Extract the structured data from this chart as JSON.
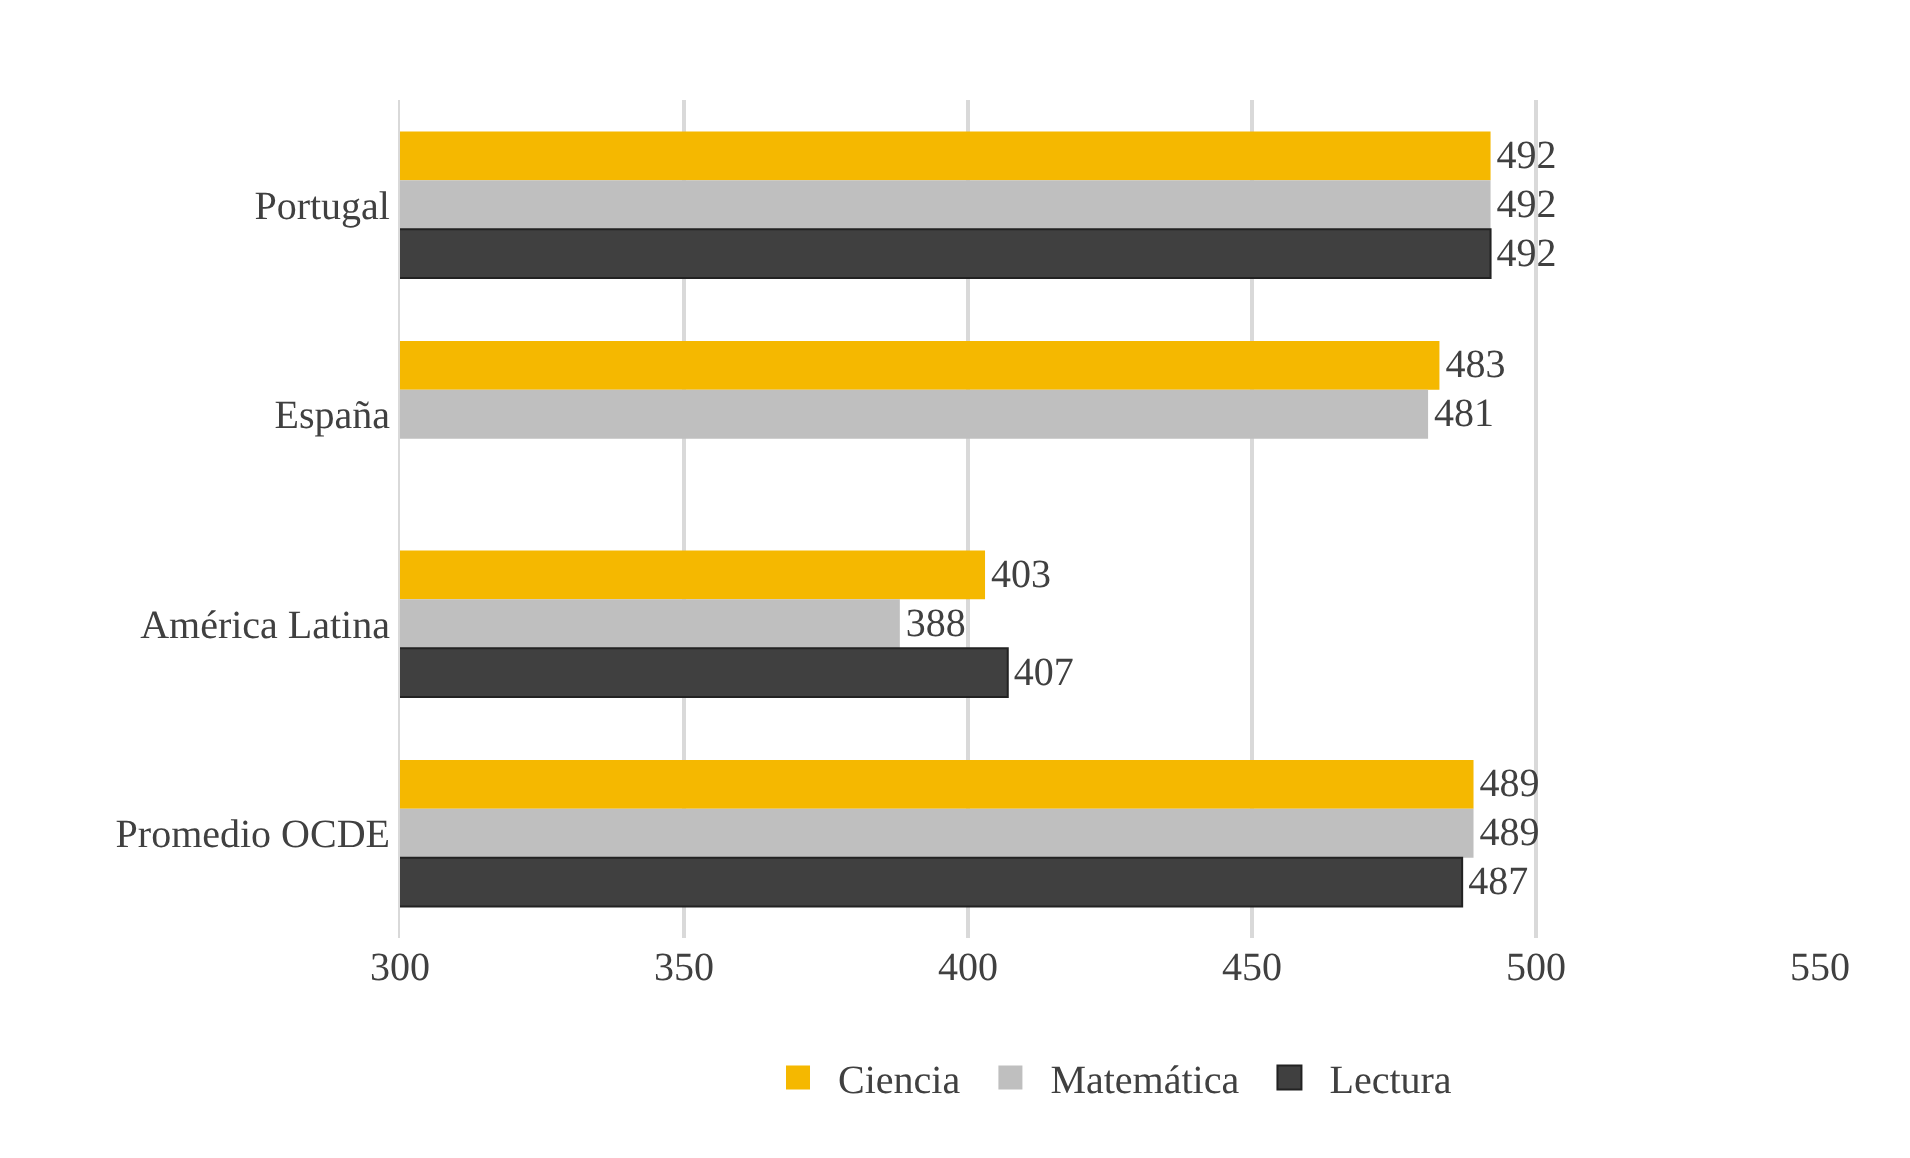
{
  "chart_data": {
    "type": "bar",
    "orientation": "horizontal",
    "categories": [
      "Portugal",
      "España",
      "América Latina",
      "Promedio OCDE"
    ],
    "series": [
      {
        "name": "Ciencia",
        "color": "#f5b800",
        "values": [
          492,
          483,
          403,
          489
        ]
      },
      {
        "name": "Matemática",
        "color": "#bfbfbf",
        "values": [
          492,
          481,
          388,
          489
        ]
      },
      {
        "name": "Lectura",
        "color": "#404040",
        "values": [
          492,
          null,
          407,
          487
        ]
      }
    ],
    "xlim": [
      300,
      550
    ],
    "xticks": [
      300,
      350,
      400,
      450,
      500,
      550
    ],
    "grid": "x",
    "legend": "bottom",
    "data_labels": true
  }
}
